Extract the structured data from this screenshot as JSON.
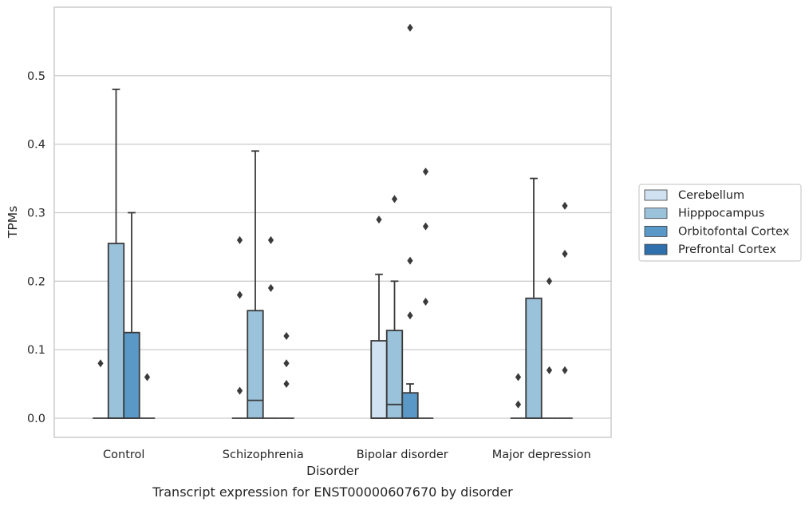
{
  "chart_data": {
    "type": "box",
    "caption": "Transcript expression for ENST00000607670 by disorder",
    "xlabel": "Disorder",
    "ylabel": "TPMs",
    "ylim": [
      -0.028,
      0.6
    ],
    "yticks": [
      "0.0",
      "0.1",
      "0.2",
      "0.3",
      "0.4",
      "0.5"
    ],
    "ytick_values": [
      0,
      0.1,
      0.2,
      0.3,
      0.4,
      0.5
    ],
    "grid": true,
    "legend_position": "right",
    "categories": [
      "Control",
      "Schizophrenia",
      "Bipolar disorder",
      "Major depression"
    ],
    "series": [
      {
        "name": "Cerebellum",
        "color": "#d0e1f2",
        "boxes": [
          {
            "q1": 0,
            "median": 0,
            "q3": 0,
            "whisker_low": 0,
            "whisker_high": 0,
            "outliers": [
              0.08
            ]
          },
          {
            "q1": 0,
            "median": 0,
            "q3": 0,
            "whisker_low": 0,
            "whisker_high": 0,
            "outliers": [
              0.26,
              0.18,
              0.04
            ]
          },
          {
            "q1": 0,
            "median": 0,
            "q3": 0.113,
            "whisker_low": 0,
            "whisker_high": 0.21,
            "outliers": [
              0.29
            ]
          },
          {
            "q1": 0,
            "median": 0,
            "q3": 0,
            "whisker_low": 0,
            "whisker_high": 0,
            "outliers": [
              0.06,
              0.02
            ]
          }
        ]
      },
      {
        "name": "Hipppocampus",
        "color": "#9ac2da",
        "boxes": [
          {
            "q1": 0,
            "median": 0,
            "q3": 0.255,
            "whisker_low": 0,
            "whisker_high": 0.48,
            "outliers": []
          },
          {
            "q1": 0,
            "median": 0.026,
            "q3": 0.157,
            "whisker_low": 0,
            "whisker_high": 0.39,
            "outliers": []
          },
          {
            "q1": 0,
            "median": 0.02,
            "q3": 0.128,
            "whisker_low": 0,
            "whisker_high": 0.2,
            "outliers": [
              0.32
            ]
          },
          {
            "q1": 0,
            "median": 0,
            "q3": 0.175,
            "whisker_low": 0,
            "whisker_high": 0.35,
            "outliers": []
          }
        ]
      },
      {
        "name": "Orbitofontal Cortex",
        "color": "#5a99c7",
        "boxes": [
          {
            "q1": 0,
            "median": 0,
            "q3": 0.125,
            "whisker_low": 0,
            "whisker_high": 0.3,
            "outliers": []
          },
          {
            "q1": 0,
            "median": 0,
            "q3": 0,
            "whisker_low": 0,
            "whisker_high": 0,
            "outliers": [
              0.26,
              0.19
            ]
          },
          {
            "q1": 0,
            "median": 0,
            "q3": 0.037,
            "whisker_low": 0,
            "whisker_high": 0.05,
            "outliers": [
              0.57,
              0.23,
              0.15
            ]
          },
          {
            "q1": 0,
            "median": 0,
            "q3": 0,
            "whisker_low": 0,
            "whisker_high": 0,
            "outliers": [
              0.2,
              0.07
            ]
          }
        ]
      },
      {
        "name": "Prefrontal Cortex",
        "color": "#2f6fab",
        "boxes": [
          {
            "q1": 0,
            "median": 0,
            "q3": 0,
            "whisker_low": 0,
            "whisker_high": 0,
            "outliers": [
              0.06
            ]
          },
          {
            "q1": 0,
            "median": 0,
            "q3": 0,
            "whisker_low": 0,
            "whisker_high": 0,
            "outliers": [
              0.12,
              0.08,
              0.05
            ]
          },
          {
            "q1": 0,
            "median": 0,
            "q3": 0,
            "whisker_low": 0,
            "whisker_high": 0,
            "outliers": [
              0.36,
              0.28,
              0.17
            ]
          },
          {
            "q1": 0,
            "median": 0,
            "q3": 0,
            "whisker_low": 0,
            "whisker_high": 0,
            "outliers": [
              0.31,
              0.24,
              0.07
            ]
          }
        ]
      }
    ],
    "colors": {
      "grid": "#cccccc",
      "frame": "#cccccc",
      "box_edge": "#3a3a3a",
      "outlier": "#3a3a3a"
    }
  }
}
